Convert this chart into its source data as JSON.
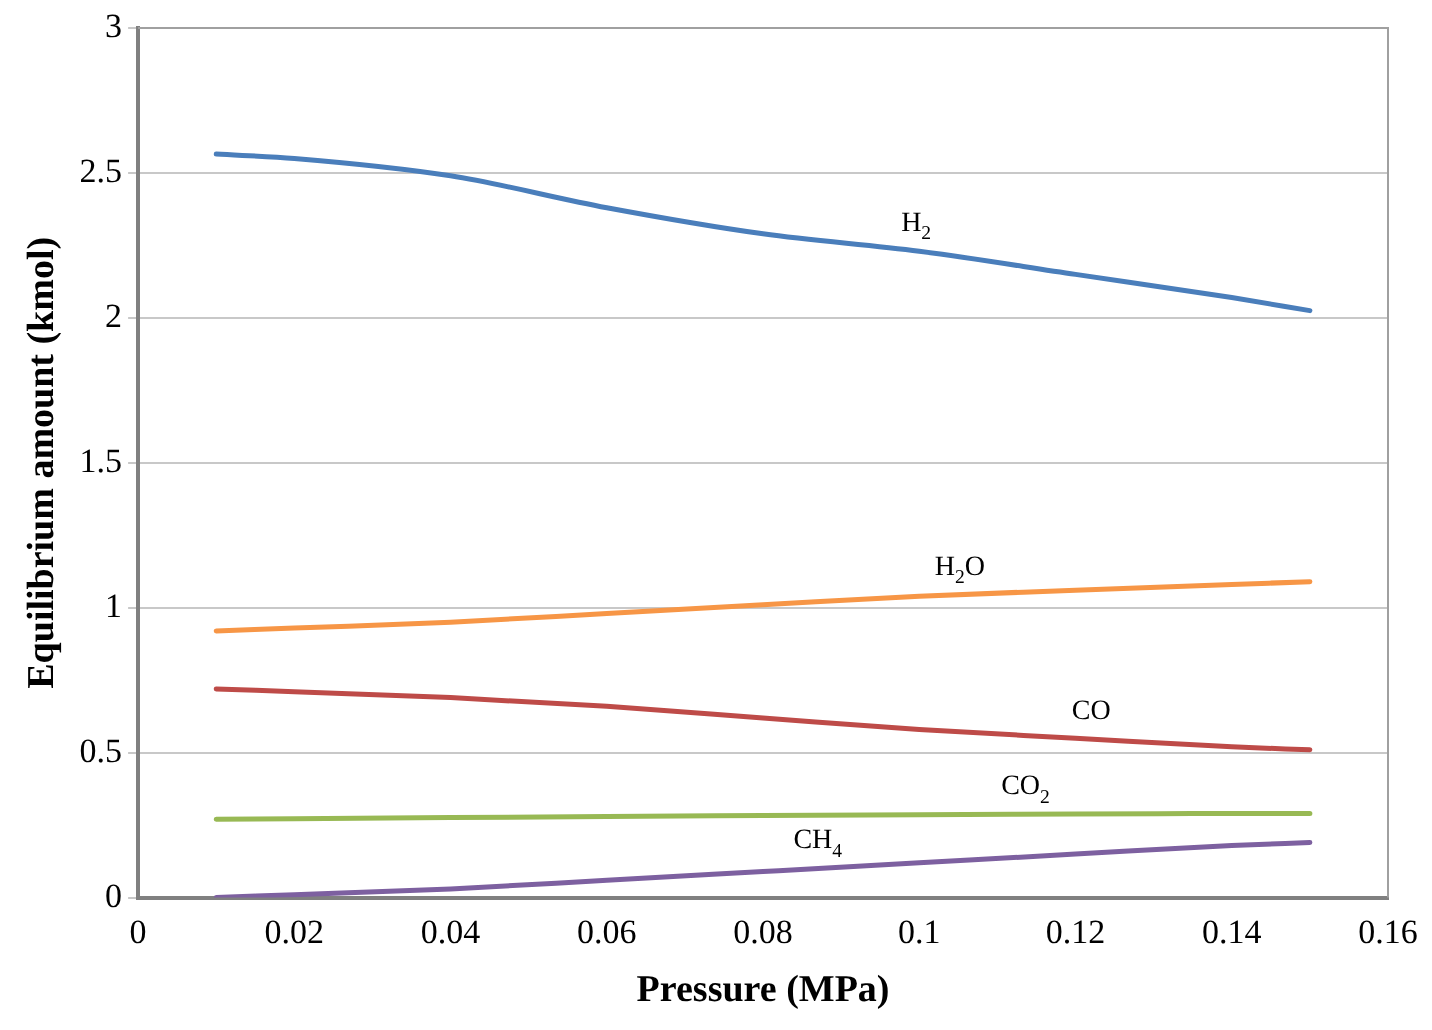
{
  "chart_data": {
    "type": "line",
    "xlabel": "Pressure (MPa)",
    "ylabel": "Equilibrium amount (kmol)",
    "x": [
      0.01,
      0.02,
      0.04,
      0.06,
      0.08,
      0.1,
      0.12,
      0.14,
      0.15
    ],
    "series": [
      {
        "name": "H$_{2}$",
        "color": "#4a7ebb",
        "values": [
          2.565,
          2.55,
          2.49,
          2.38,
          2.29,
          2.23,
          2.15,
          2.07,
          2.025
        ]
      },
      {
        "name": "H$_{2}$O",
        "color": "#f79646",
        "values": [
          0.92,
          0.93,
          0.95,
          0.98,
          1.01,
          1.04,
          1.06,
          1.08,
          1.09
        ]
      },
      {
        "name": "CO",
        "color": "#be4b48",
        "values": [
          0.72,
          0.71,
          0.69,
          0.66,
          0.62,
          0.58,
          0.55,
          0.52,
          0.51
        ]
      },
      {
        "name": "CO$_{2}$",
        "color": "#98b954",
        "values": [
          0.27,
          0.272,
          0.276,
          0.28,
          0.283,
          0.286,
          0.288,
          0.29,
          0.29
        ]
      },
      {
        "name": "CH$_{4}$",
        "color": "#7d60a0",
        "values": [
          0.0,
          0.01,
          0.03,
          0.06,
          0.09,
          0.12,
          0.15,
          0.18,
          0.19
        ]
      }
    ],
    "xlim": [
      0,
      0.16
    ],
    "xticks": [
      0,
      0.02,
      0.04,
      0.06,
      0.08,
      0.1,
      0.12,
      0.14,
      0.16
    ],
    "ylim": [
      0,
      3
    ],
    "yticks": [
      0,
      0.5,
      1,
      1.5,
      2,
      2.5,
      3
    ],
    "grid": "y",
    "legend": false,
    "marker": "none",
    "line_style": "solid"
  }
}
